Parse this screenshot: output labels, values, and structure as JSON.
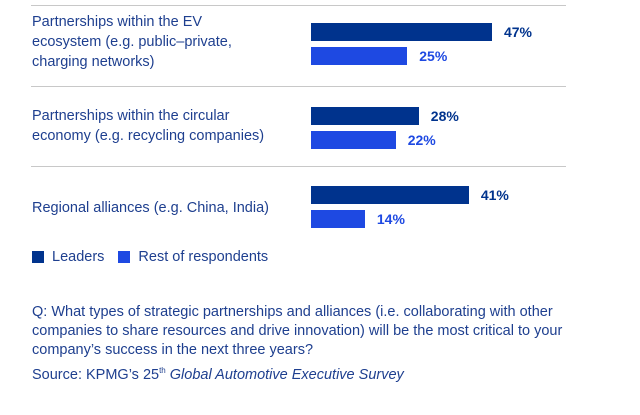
{
  "chart_data": {
    "type": "bar",
    "orientation": "horizontal",
    "categories": [
      "Partnerships within the EV ecosystem (e.g. public–private, charging networks)",
      "Partnerships within the circular economy (e.g. recycling companies)",
      "Regional alliances (e.g. China, India)"
    ],
    "category_lines": [
      [
        "Partnerships within the EV",
        "ecosystem (e.g. public–private,",
        "charging networks)"
      ],
      [
        "Partnerships within the circular",
        "economy (e.g. recycling companies)"
      ],
      [
        "Regional alliances (e.g. China, India)"
      ]
    ],
    "series": [
      {
        "name": "Leaders",
        "color": "#00338d",
        "values": [
          47,
          28,
          41
        ],
        "labels": [
          "47%",
          "28%",
          "41%"
        ]
      },
      {
        "name": "Rest of respondents",
        "color": "#1e49e2",
        "values": [
          25,
          22,
          14
        ],
        "labels": [
          "25%",
          "22%",
          "14%"
        ]
      }
    ],
    "xlim": [
      0,
      100
    ],
    "unit": "%",
    "legend_position": "bottom-left",
    "grid": false
  },
  "question": "Q: What types of strategic partnerships and alliances (i.e. collaborating with other companies to share resources and drive innovation) will be the most critical to your company’s success in the next three years?",
  "source": {
    "prefix": "Source: KPMG’s 25",
    "superscript": "th",
    "title": "Global Automotive Executive Survey"
  }
}
